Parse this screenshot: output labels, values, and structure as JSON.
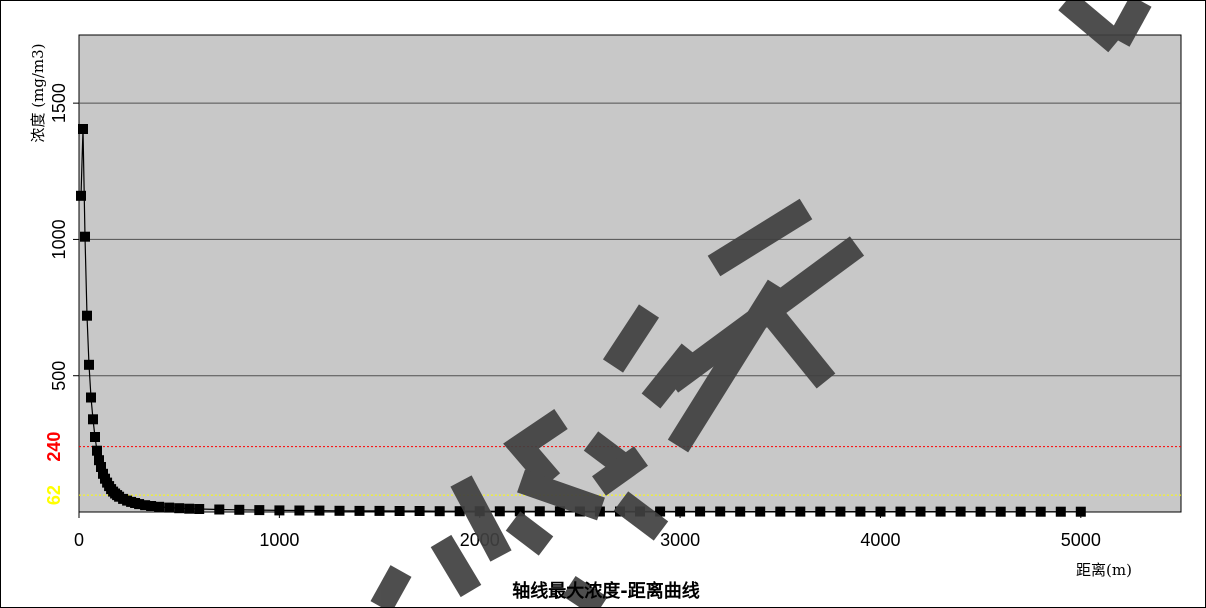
{
  "chart_data": {
    "type": "line",
    "title": "轴线最大浓度-距离曲线",
    "xlabel": "距离(m)",
    "ylabel": "浓度 (mg/m3)",
    "xlim": [
      0,
      5500
    ],
    "ylim": [
      0,
      1750
    ],
    "x_ticks": [
      0,
      1000,
      2000,
      3000,
      4000,
      5000
    ],
    "y_ticks": [
      500,
      1000,
      1500
    ],
    "grid": "horizontal",
    "legend": "none",
    "plot_background": "#c8c8c8",
    "series": [
      {
        "color": "#000000",
        "marker": "square",
        "x": [
          10,
          20,
          30,
          40,
          50,
          60,
          70,
          80,
          90,
          100,
          110,
          120,
          130,
          140,
          150,
          160,
          170,
          180,
          190,
          200,
          220,
          240,
          260,
          280,
          300,
          330,
          360,
          400,
          450,
          500,
          550,
          600,
          700,
          800,
          900,
          1000,
          1100,
          1200,
          1300,
          1400,
          1500,
          1600,
          1700,
          1800,
          1900,
          2000,
          2100,
          2200,
          2300,
          2400,
          2500,
          2600,
          2700,
          2800,
          2900,
          3000,
          3100,
          3200,
          3300,
          3400,
          3500,
          3600,
          3700,
          3800,
          3900,
          4000,
          4100,
          4200,
          4300,
          4400,
          4500,
          4600,
          4700,
          4800,
          4900,
          5000
        ],
        "y": [
          1160,
          1405,
          1010,
          720,
          540,
          420,
          340,
          275,
          225,
          190,
          165,
          140,
          122,
          108,
          95,
          84,
          75,
          68,
          62,
          56,
          48,
          42,
          37,
          33,
          29,
          25,
          22,
          19,
          16,
          14,
          12,
          11,
          9,
          8,
          7,
          6,
          5.5,
          5,
          4.5,
          4,
          4,
          3.5,
          3.5,
          3,
          3,
          3,
          2.5,
          2.5,
          2.5,
          2.5,
          2,
          2,
          2,
          2,
          2,
          2,
          2,
          2,
          1.5,
          1.5,
          1.5,
          1.5,
          1.5,
          1.5,
          1.5,
          1.5,
          1.5,
          1.5,
          1.5,
          1.5,
          1,
          1,
          1,
          1,
          1,
          1
        ]
      }
    ],
    "reference_lines": [
      {
        "label": "240",
        "value": 240,
        "color": "#ff0000",
        "style": "dotted"
      },
      {
        "label": "62",
        "value": 62,
        "color": "#ffff00",
        "style": "dotted"
      }
    ]
  },
  "watermark": {
    "text": "信息公示",
    "color": "#404040"
  }
}
